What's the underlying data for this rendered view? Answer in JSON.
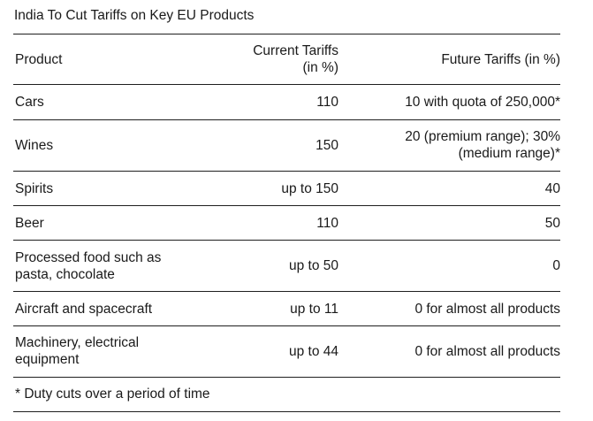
{
  "title": "India To Cut Tariffs on Key EU Products",
  "table": {
    "headers": [
      "Product",
      "Current Tariffs\n(in %)",
      "Future Tariffs (in %)"
    ],
    "rows": [
      [
        "Cars",
        "110",
        "10 with quota of 250,000*"
      ],
      [
        "Wines",
        "150",
        "20 (premium range); 30%\n(medium range)*"
      ],
      [
        "Spirits",
        "up to 150",
        "40"
      ],
      [
        "Beer",
        "110",
        "50"
      ],
      [
        "Processed food such as\npasta, chocolate",
        "up to 50",
        "0"
      ],
      [
        "Aircraft and spacecraft",
        "up to 11",
        "0 for almost all products"
      ],
      [
        "Machinery, electrical\nequipment",
        "up to 44",
        "0 for almost all products"
      ]
    ]
  },
  "footnote": "* Duty cuts over a period of time"
}
